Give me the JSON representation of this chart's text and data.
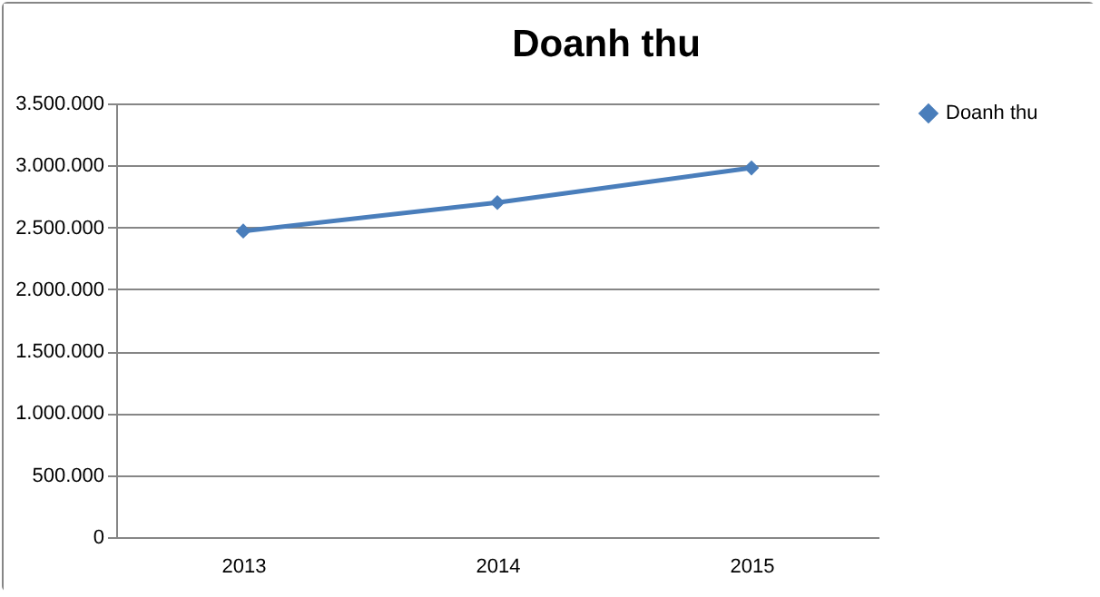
{
  "chart_data": {
    "type": "line",
    "title": "Doanh thu",
    "categories": [
      "2013",
      "2014",
      "2015"
    ],
    "series": [
      {
        "name": "Doanh thu",
        "color": "#4a7ebb",
        "values": [
          2470000,
          2700000,
          2980000
        ]
      }
    ],
    "ylim": [
      0,
      3500000
    ],
    "yticks": [
      {
        "value": 0,
        "label": "0"
      },
      {
        "value": 500000,
        "label": "500.000"
      },
      {
        "value": 1000000,
        "label": "1.000.000"
      },
      {
        "value": 1500000,
        "label": "1.500.000"
      },
      {
        "value": 2000000,
        "label": "2.000.000"
      },
      {
        "value": 2500000,
        "label": "2.500.000"
      },
      {
        "value": 3000000,
        "label": "3.000.000"
      },
      {
        "value": 3500000,
        "label": "3.500.000"
      }
    ],
    "grid": "y",
    "legend": "right",
    "marker": "diamond",
    "line_style": "solid"
  }
}
